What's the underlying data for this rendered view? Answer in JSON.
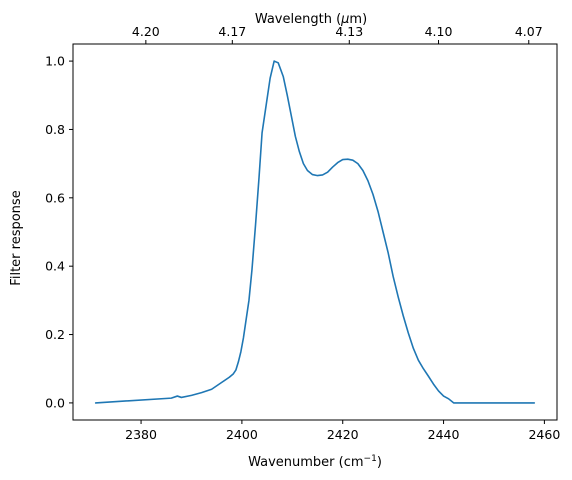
{
  "chart_data": {
    "type": "line",
    "title": "",
    "xlabel": "Wavenumber (cm",
    "xlabel_sup": "−1",
    "xlabel_close": ")",
    "ylabel": "Filter response",
    "top_xlabel": "Wavelength (",
    "top_xlabel_mu": "μ",
    "top_xlabel_close": "m)",
    "xlim": [
      2366.5,
      2462.5
    ],
    "ylim": [
      -0.05,
      1.05
    ],
    "x_ticks": [
      2380,
      2400,
      2420,
      2440,
      2460
    ],
    "y_ticks": [
      0.0,
      0.2,
      0.4,
      0.6,
      0.8,
      1.0
    ],
    "y_tick_labels": [
      "0.0",
      "0.2",
      "0.4",
      "0.6",
      "0.8",
      "1.0"
    ],
    "top_ticks": [
      {
        "x": 2380.95,
        "label": "4.20"
      },
      {
        "x": 2398.1,
        "label": "4.17"
      },
      {
        "x": 2421.3,
        "label": "4.13"
      },
      {
        "x": 2439.0,
        "label": "4.10"
      },
      {
        "x": 2456.9,
        "label": "4.07"
      }
    ],
    "grid": false,
    "series": [
      {
        "color": "#1f77b4",
        "x": [
          2371,
          2386,
          2387.2,
          2388,
          2390,
          2392,
          2394,
          2396,
          2397.5,
          2398.3,
          2398.8,
          2399.3,
          2399.8,
          2400.3,
          2400.8,
          2401.4,
          2402,
          2402.7,
          2403.4,
          2404,
          2404.8,
          2405.6,
          2406.4,
          2407.2,
          2408.2,
          2409,
          2409.8,
          2410.6,
          2411.4,
          2412.2,
          2413,
          2414,
          2415,
          2416,
          2417,
          2418,
          2419,
          2420,
          2421,
          2422,
          2423,
          2424,
          2425,
          2426,
          2427,
          2428,
          2429,
          2430,
          2431,
          2432,
          2433,
          2434,
          2435,
          2436,
          2437,
          2438,
          2439,
          2440,
          2441,
          2442,
          2443,
          2444,
          2458
        ],
        "y": [
          0.0,
          0.014,
          0.02,
          0.016,
          0.022,
          0.03,
          0.04,
          0.06,
          0.075,
          0.085,
          0.096,
          0.12,
          0.15,
          0.19,
          0.24,
          0.3,
          0.39,
          0.52,
          0.66,
          0.79,
          0.87,
          0.95,
          1.0,
          0.995,
          0.955,
          0.9,
          0.84,
          0.78,
          0.735,
          0.7,
          0.68,
          0.668,
          0.665,
          0.667,
          0.675,
          0.69,
          0.703,
          0.712,
          0.713,
          0.71,
          0.7,
          0.68,
          0.65,
          0.61,
          0.56,
          0.5,
          0.44,
          0.37,
          0.31,
          0.255,
          0.205,
          0.16,
          0.125,
          0.1,
          0.078,
          0.055,
          0.035,
          0.02,
          0.012,
          0.0,
          0.0,
          0.0,
          0.0
        ]
      }
    ]
  }
}
